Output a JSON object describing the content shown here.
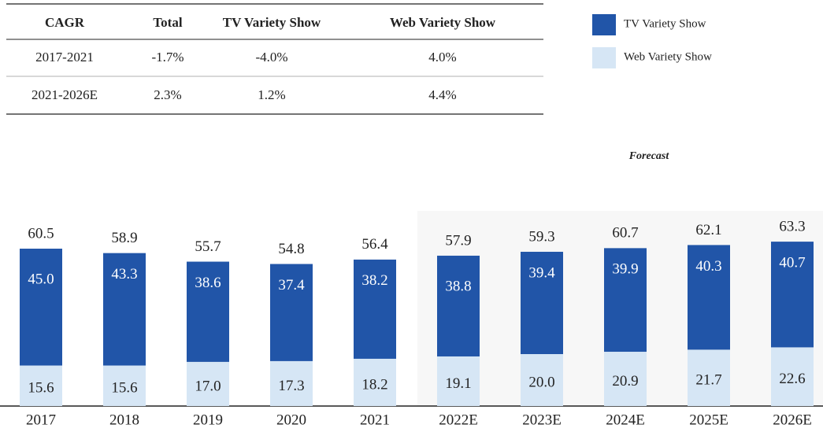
{
  "table": {
    "header": [
      "CAGR",
      "Total",
      "TV Variety Show",
      "Web Variety Show"
    ],
    "rows": [
      [
        "2017-2021",
        "-1.7%",
        "-4.0%",
        "4.0%"
      ],
      [
        "2021-2026E",
        "2.3%",
        "1.2%",
        "4.4%"
      ]
    ]
  },
  "chart_data": {
    "type": "stacked_bar",
    "annotation": "Forecast",
    "categories": [
      "2017",
      "2018",
      "2019",
      "2020",
      "2021",
      "2022E",
      "2023E",
      "2024E",
      "2025E",
      "2026E"
    ],
    "totals": [
      60.5,
      58.9,
      55.7,
      54.8,
      56.4,
      57.9,
      59.3,
      60.7,
      62.1,
      63.3
    ],
    "series": [
      {
        "name": "Web Variety Show",
        "color": "#d6e6f5",
        "values": [
          15.6,
          15.6,
          17.0,
          17.3,
          18.2,
          19.1,
          20.0,
          20.9,
          21.7,
          22.6
        ],
        "value_labels": [
          "15.6",
          "15.6",
          "17.0",
          "17.3",
          "18.2",
          "19.1",
          "20.0",
          "20.9",
          "21.7",
          "22.6"
        ]
      },
      {
        "name": "TV Variety Show",
        "color": "#2155a8",
        "values": [
          45.0,
          43.3,
          38.6,
          37.4,
          38.2,
          38.8,
          39.4,
          39.9,
          40.3,
          40.7
        ],
        "value_labels": [
          "45.0",
          "43.3",
          "38.6",
          "37.4",
          "38.2",
          "38.8",
          "39.4",
          "39.9",
          "40.3",
          "40.7"
        ]
      }
    ]
  }
}
